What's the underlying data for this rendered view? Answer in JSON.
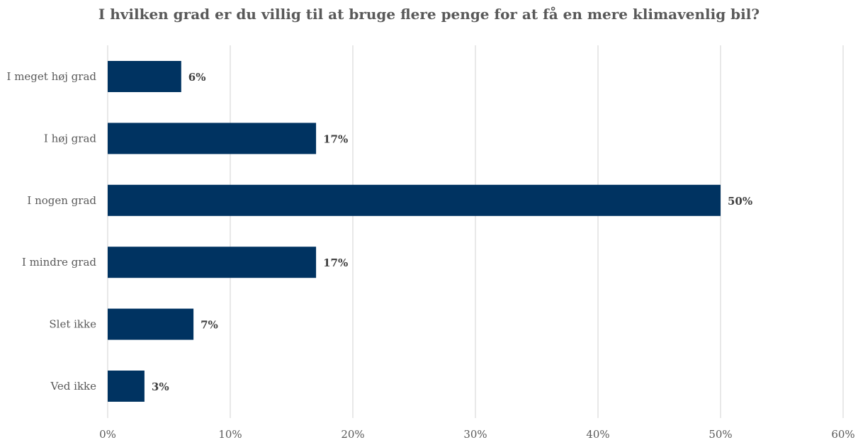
{
  "chart_data": {
    "type": "bar",
    "orientation": "horizontal",
    "title": "I hvilken grad er du villig til at bruge flere penge for at få en mere klimavenlig bil?",
    "categories": [
      "I meget høj grad",
      "I høj grad",
      "I nogen grad",
      "I mindre grad",
      "Slet ikke",
      "Ved ikke"
    ],
    "values": [
      6,
      17,
      50,
      17,
      7,
      3
    ],
    "data_labels": [
      "6%",
      "17%",
      "50%",
      "17%",
      "7%",
      "3%"
    ],
    "xlim": [
      0,
      60
    ],
    "xticks": [
      0,
      10,
      20,
      30,
      40,
      50,
      60
    ],
    "xtick_labels": [
      "0%",
      "10%",
      "20%",
      "30%",
      "40%",
      "50%",
      "60%"
    ],
    "xlabel": "",
    "ylabel": "",
    "grid": "vertical",
    "legend": "none",
    "bar_color": "#003361",
    "text_color": "#595959"
  }
}
